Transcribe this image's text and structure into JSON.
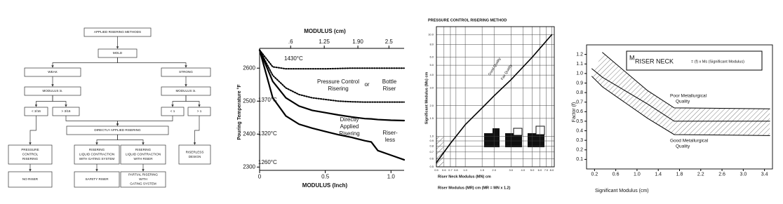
{
  "diagram": {
    "nodes": [
      {
        "lines": [
          "APPLIED RISERING METHODS"
        ]
      },
      {
        "lines": [
          "MOLD"
        ]
      },
      {
        "lines": [
          "WEAK"
        ]
      },
      {
        "lines": [
          "STRONG"
        ]
      },
      {
        "lines": [
          "MODULUS in."
        ]
      },
      {
        "lines": [
          "MODULUS in."
        ]
      },
      {
        "lines": [
          "< 3/16"
        ]
      },
      {
        "lines": [
          "> 3/16"
        ]
      },
      {
        "lines": [
          "< 1"
        ]
      },
      {
        "lines": [
          "> 1"
        ]
      },
      {
        "lines": [
          "DIRECTLY APPLIED RISERING"
        ]
      },
      {
        "lines": [
          "PRESSURE",
          "CONTROL",
          "RISERING"
        ]
      },
      {
        "lines": [
          "RISERING",
          "LIQUID CONTRACTION",
          "WITH GATING SYSTEM"
        ]
      },
      {
        "lines": [
          "RISERING",
          "LIQUID CONTRACTION",
          "WITH RISER"
        ]
      },
      {
        "lines": [
          "RISERLESS",
          "DESIGN"
        ]
      },
      {
        "lines": [
          "NO RISER"
        ]
      },
      {
        "lines": [
          "SAFETY RISER"
        ]
      },
      {
        "lines": [
          "PARTIAL RISERING",
          "WITH",
          "GATING SYSTEM"
        ]
      }
    ]
  },
  "chart_data": [
    {
      "type": "line",
      "xlabel": "MODULUS (Inch)",
      "x2label": "MODULUS (cm)",
      "ylabel": "Pouring Temperature °F",
      "x": [
        0,
        0.1,
        0.2,
        0.3,
        0.4,
        0.5,
        0.6,
        0.7,
        0.8,
        0.85,
        0.9,
        1.0,
        1.1
      ],
      "xlim": [
        0,
        1.1
      ],
      "xticks": [
        0,
        0.5,
        {
          "value": 1.0,
          "label": "1.0"
        }
      ],
      "x2lim": [
        0,
        2.794
      ],
      "x2ticks": [
        {
          "value": 0.6,
          "label": ".6"
        },
        1.25,
        {
          "value": 1.9,
          "label": "1.90"
        },
        2.5
      ],
      "ylim": [
        2290,
        2660
      ],
      "yticks": [
        2300,
        2400,
        2500,
        2600
      ],
      "grid": false,
      "series": [
        {
          "style": "dotted",
          "color": "#000000",
          "values": [
            2655,
            2604,
            2598,
            2598,
            2598,
            2598,
            2599,
            2600,
            2600,
            2600,
            2600,
            2600,
            2600
          ]
        },
        {
          "style": "dotted",
          "color": "#000000",
          "values": [
            2655,
            2578,
            2540,
            2520,
            2510,
            2505,
            2500,
            2498,
            2497,
            2497,
            2497,
            2497,
            2497
          ]
        },
        {
          "style": "solid",
          "color": "#000000",
          "values": [
            2655,
            2560,
            2510,
            2485,
            2472,
            2465,
            2458,
            2452,
            2447,
            2446,
            2444,
            2442,
            2441
          ]
        },
        {
          "style": "solid",
          "color": "#000000",
          "values": [
            2655,
            2510,
            2455,
            2430,
            2418,
            2408,
            2398,
            2390,
            2380,
            2376,
            2350,
            2336,
            2322
          ]
        }
      ],
      "annotations": [
        "1430°C",
        "1370°C",
        "1320°C",
        "1260°C",
        "Pressure Control",
        "Risering",
        "or",
        "Bottle",
        "Riser",
        "Directly",
        "Applied",
        "Risering",
        "Riser-",
        "less"
      ]
    },
    {
      "type": "line",
      "title": "PRESSURE CONTROL RISERING METHOD",
      "xlabel": "Riser Neck Modulus (MN) cm",
      "x2label": "Riser Modulus (MR) cm  (MR = MN x 1.2)",
      "ylabel": "Significant Modulus (Ms) cm",
      "xlog": true,
      "ylog": true,
      "grid": true,
      "x": [
        0.5,
        0.7,
        1,
        1.5,
        2,
        3,
        5,
        8
      ],
      "xlim": [
        0.5,
        8.5
      ],
      "xticks": [
        0.5,
        0.6,
        0.7,
        0.8,
        {
          "value": 1,
          "label": "1.0"
        },
        1.5,
        {
          "value": 2,
          "label": "2.0"
        },
        {
          "value": 3,
          "label": "3.0"
        },
        {
          "value": 4,
          "label": "4.0"
        },
        {
          "value": 5,
          "label": "5.0"
        },
        {
          "value": 6,
          "label": "6.0"
        },
        {
          "value": 7,
          "label": "7.0"
        },
        {
          "value": 8,
          "label": "8.0"
        }
      ],
      "ylim": [
        0.5,
        12
      ],
      "yticks": [
        0.5,
        0.6,
        0.7,
        0.8,
        0.9,
        {
          "value": 1,
          "label": "1.0"
        },
        1.5,
        {
          "value": 2,
          "label": "2.0"
        },
        {
          "value": 3,
          "label": "3.0"
        },
        {
          "value": 4,
          "label": "4.0"
        },
        {
          "value": 5,
          "label": "5.0"
        },
        {
          "value": 6,
          "label": "6.0"
        },
        {
          "value": 8,
          "label": "8.0"
        },
        {
          "value": 10,
          "label": "10.0"
        }
      ],
      "series": [
        {
          "style": "solid",
          "color": "#000000",
          "values": [
            0.55,
            0.85,
            1.3,
            1.9,
            2.5,
            3.6,
            6,
            10
          ]
        }
      ],
      "annotations": [
        "Good Quality",
        "Fair Quality"
      ]
    },
    {
      "type": "line",
      "xlabel": "Significant Modulus (cm)",
      "ylabel": "Factor (f)",
      "grid": false,
      "hatch": true,
      "x": [
        0.15,
        0.35,
        1.2,
        1.7,
        3.5
      ],
      "xlim": [
        0.05,
        3.55
      ],
      "xticks": [
        0.2,
        0.6,
        {
          "value": 1.0,
          "label": "1.0"
        },
        1.4,
        1.8,
        2.2,
        2.6,
        {
          "value": 3.0,
          "label": "3.0"
        },
        3.4
      ],
      "ylim": [
        0,
        1.3
      ],
      "yticks": [
        0.1,
        0.2,
        0.3,
        0.4,
        0.5,
        0.6,
        0.7,
        0.8,
        0.9,
        {
          "value": 1.0,
          "label": "1.0"
        },
        1.1,
        1.2
      ],
      "series": [
        {
          "style": "solid",
          "color": "#000000",
          "values": [
            null,
            1.22,
            0.82,
            0.64,
            0.63
          ]
        },
        {
          "style": "solid",
          "color": "#000000",
          "values": [
            1.05,
            0.96,
            0.68,
            0.5,
            0.5
          ]
        },
        {
          "style": "solid",
          "color": "#000000",
          "values": [
            0.97,
            0.86,
            0.53,
            0.36,
            0.35
          ]
        }
      ],
      "formula": {
        "symbol": "M",
        "subscript": "RISER NECK",
        "rest": "= (f) x Ms (Significant Modulus)"
      },
      "annotations": [
        "Poor Metallurgical",
        "Quality",
        "Good Metallurgical",
        "Quality"
      ]
    }
  ]
}
